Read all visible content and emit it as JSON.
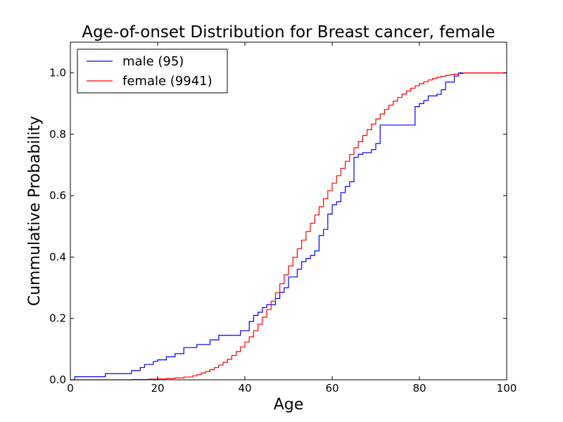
{
  "chart_data": {
    "type": "line",
    "title": "Age-of-onset Distribution for Breast cancer, female",
    "xlabel": "Age",
    "ylabel": "Cummulative Probability",
    "xlim": [
      0,
      100
    ],
    "ylim": [
      0,
      1.1
    ],
    "xticks": [
      "0",
      "20",
      "40",
      "60",
      "80",
      "100"
    ],
    "yticks": [
      "0.0",
      "0.2",
      "0.4",
      "0.6",
      "0.8",
      "1.0"
    ],
    "grid": false,
    "legend_position": "top-left",
    "colors": {
      "male": "#0000ff",
      "female": "#ff0000"
    },
    "series": [
      {
        "name": "male (95)",
        "color": "#0000ff",
        "x": [
          0,
          1,
          8,
          14,
          16,
          17,
          19,
          20,
          22,
          24,
          26,
          29,
          32,
          34,
          39,
          41,
          42,
          43,
          44,
          45,
          47,
          48,
          49,
          50,
          52,
          53,
          54,
          55,
          56,
          57,
          58,
          59,
          60,
          61,
          62,
          63,
          64,
          65,
          66,
          67,
          69,
          70,
          71,
          79,
          80,
          81,
          82,
          84,
          85,
          86,
          88,
          89,
          100
        ],
        "y": [
          0.0,
          0.01,
          0.02,
          0.03,
          0.04,
          0.05,
          0.06,
          0.065,
          0.075,
          0.085,
          0.105,
          0.115,
          0.13,
          0.145,
          0.16,
          0.19,
          0.21,
          0.22,
          0.235,
          0.245,
          0.265,
          0.285,
          0.3,
          0.335,
          0.36,
          0.385,
          0.395,
          0.405,
          0.42,
          0.47,
          0.49,
          0.54,
          0.57,
          0.58,
          0.61,
          0.63,
          0.645,
          0.725,
          0.735,
          0.74,
          0.75,
          0.77,
          0.83,
          0.89,
          0.9,
          0.91,
          0.925,
          0.93,
          0.945,
          0.97,
          0.99,
          1.0,
          1.0
        ]
      },
      {
        "name": "female (9941)",
        "color": "#ff0000",
        "x": [
          0,
          14,
          18,
          20,
          22,
          24,
          26,
          28,
          29,
          30,
          31,
          32,
          33,
          34,
          35,
          36,
          37,
          38,
          39,
          40,
          41,
          42,
          43,
          44,
          45,
          46,
          47,
          48,
          49,
          50,
          51,
          52,
          53,
          54,
          55,
          56,
          57,
          58,
          59,
          60,
          61,
          62,
          63,
          64,
          65,
          66,
          67,
          68,
          69,
          70,
          71,
          72,
          73,
          74,
          75,
          76,
          77,
          78,
          79,
          80,
          81,
          82,
          83,
          84,
          85,
          86,
          87,
          88,
          89,
          90,
          100
        ],
        "y": [
          0.0,
          0.001,
          0.002,
          0.003,
          0.004,
          0.006,
          0.009,
          0.013,
          0.017,
          0.022,
          0.027,
          0.033,
          0.04,
          0.048,
          0.057,
          0.067,
          0.079,
          0.092,
          0.107,
          0.123,
          0.14,
          0.16,
          0.181,
          0.204,
          0.229,
          0.256,
          0.284,
          0.313,
          0.342,
          0.371,
          0.399,
          0.427,
          0.455,
          0.483,
          0.51,
          0.537,
          0.564,
          0.59,
          0.616,
          0.641,
          0.665,
          0.689,
          0.712,
          0.734,
          0.756,
          0.776,
          0.796,
          0.815,
          0.833,
          0.85,
          0.866,
          0.881,
          0.895,
          0.908,
          0.92,
          0.931,
          0.941,
          0.95,
          0.958,
          0.965,
          0.971,
          0.977,
          0.982,
          0.986,
          0.989,
          0.992,
          0.994,
          0.996,
          0.998,
          1.0,
          1.0
        ]
      }
    ]
  }
}
